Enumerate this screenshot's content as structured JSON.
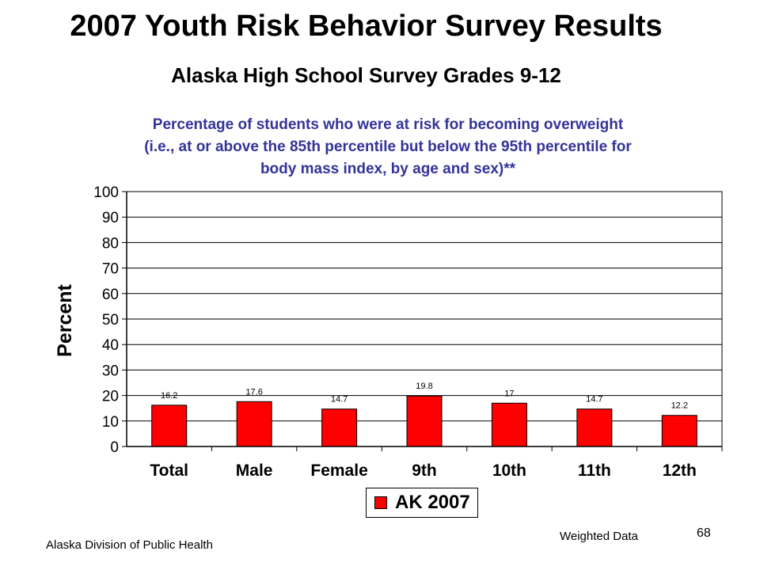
{
  "title": "2007 Youth Risk Behavior Survey Results",
  "subtitle": "Alaska High School Survey Grades 9-12",
  "chart_title_lines": [
    "Percentage of students who were at risk for becoming overweight",
    "(i.e., at or above the 85th percentile but below the 95th percentile for",
    "body mass index, by age and sex)**"
  ],
  "footer": {
    "source": "Alaska Division of Public Health",
    "note": "Weighted Data",
    "page": "68"
  },
  "colors": {
    "bar": "#ff0000",
    "chart_title": "#333399"
  },
  "chart_data": {
    "type": "bar",
    "categories": [
      "Total",
      "Male",
      "Female",
      "9th",
      "10th",
      "11th",
      "12th"
    ],
    "series": [
      {
        "name": "AK 2007",
        "values": [
          16.2,
          17.6,
          14.7,
          19.8,
          17,
          14.7,
          12.2
        ]
      }
    ],
    "data_labels": [
      "16.2",
      "17.6",
      "14.7",
      "19.8",
      "17",
      "14.7",
      "12.2"
    ],
    "ylabel": "Percent",
    "ylim": [
      0,
      100
    ],
    "yticks": [
      0,
      10,
      20,
      30,
      40,
      50,
      60,
      70,
      80,
      90,
      100
    ],
    "grid": true,
    "legend_position": "bottom-center"
  }
}
